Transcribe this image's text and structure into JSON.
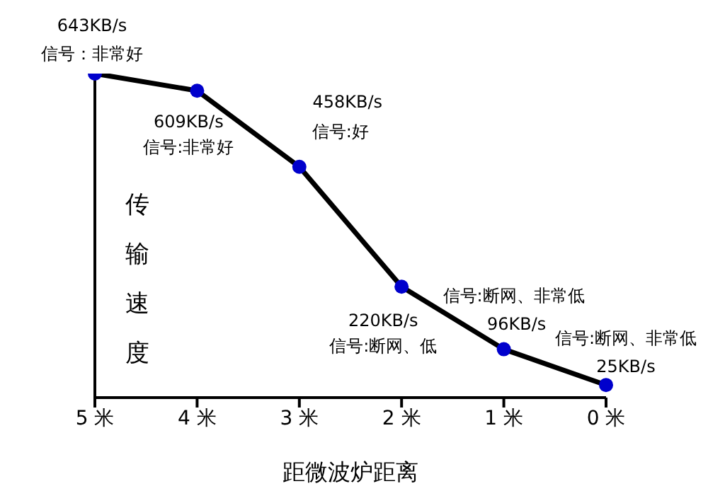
{
  "chart_data": {
    "type": "line",
    "xlabel": "距微波炉距离",
    "ylabel": "传输速度",
    "categories": [
      "5 米",
      "4 米",
      "3 米",
      "2 米",
      "1 米",
      "0 米"
    ],
    "series": [
      {
        "color": "#000000",
        "colors": [
          "#0000cc",
          "#0000cc",
          "#0000cc",
          "#0000cc",
          "#0000cc",
          "#0000cc"
        ],
        "values": [
          643,
          609,
          458,
          220,
          96,
          25
        ],
        "value_labels": [
          "643KB/s",
          "609KB/s",
          "458KB/s",
          "220KB/s",
          "96KB/s",
          "25KB/s"
        ]
      }
    ],
    "annotations": [
      {
        "text": "信号：非常好",
        "x": "5 米",
        "y": 643
      },
      {
        "text": "信号:非常好",
        "x": "4 米",
        "y": 609
      },
      {
        "text": "信号:好",
        "x": "3 米",
        "y": 458
      },
      {
        "text": "信号:断网、低",
        "x": "2 米",
        "y": 220
      },
      {
        "text": "信号:断网、非常低",
        "x": "1 米",
        "y": 96
      },
      {
        "text": "信号:断网、非常低",
        "x": "0 米",
        "y": 25
      }
    ],
    "ylim": [
      0,
      643
    ],
    "tick_labels": "x",
    "marker": "circle",
    "grid": false,
    "legend": false
  }
}
